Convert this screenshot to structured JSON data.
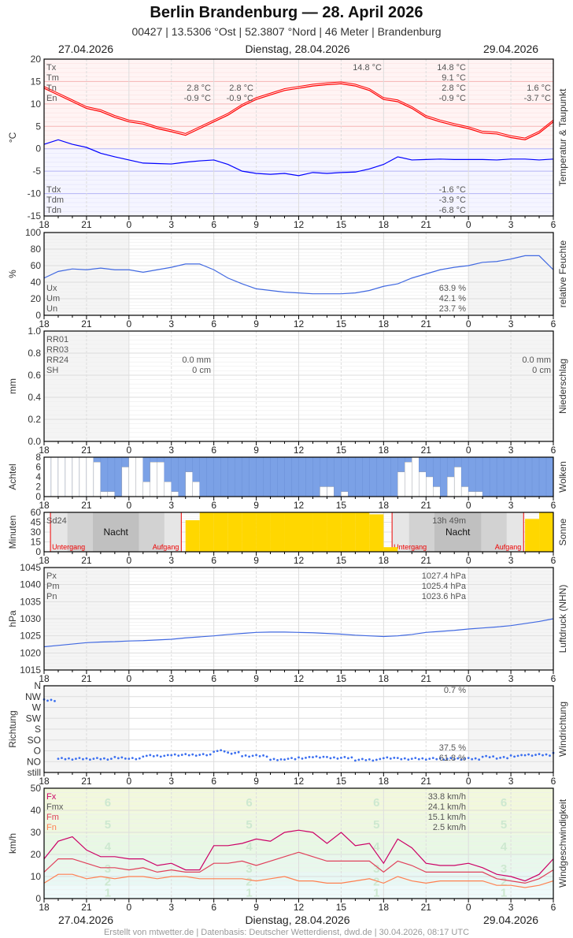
{
  "header": {
    "title": "Berlin Brandenburg  —  28. April 2026",
    "subtitle": "00427  |  13.5306 °Ost  |  52.3807 °Nord  |  46 Meter  |  Brandenburg",
    "date_left": "27.04.2026",
    "date_center": "Dienstag, 28.04.2026",
    "date_right": "29.04.2026"
  },
  "footer": "Erstellt von mtwetter.de | Datenbasis: Deutscher Wetterdienst, dwd.de | 30.04.2026, 08:17 UTC",
  "x_tick_labels": [
    "18",
    "21",
    "0",
    "3",
    "6",
    "9",
    "12",
    "15",
    "18",
    "21",
    "0",
    "3",
    "6"
  ],
  "colors": {
    "temp": "#ff0000",
    "dew": "#0000ff",
    "hum": "#4169e1",
    "cloud": "#7ba1e6",
    "sun": "#ffd700",
    "press": "#4169e1",
    "dir": "#3b6ff0",
    "fx": "#cc0066",
    "fm": "#e0405a",
    "fn": "#ff7f50"
  },
  "chart_data": [
    {
      "id": "temperature",
      "type": "line",
      "ylabel": "°C",
      "side_label": "Temperatur & Taupunkt",
      "ylim": [
        -15,
        20
      ],
      "yticks": [
        "20",
        "15",
        "10",
        "5",
        "0",
        "-5",
        "-10",
        "-15"
      ],
      "series": [
        {
          "name": "T",
          "values": [
            13.5,
            12,
            10.5,
            9,
            8.3,
            7,
            6,
            5.5,
            4.5,
            3.8,
            3,
            4.5,
            6,
            7.5,
            9.5,
            11,
            12,
            13,
            13.5,
            14,
            14.3,
            14.5,
            14,
            13,
            11,
            10.5,
            9,
            7,
            6,
            5.2,
            4.5,
            3.5,
            3.3,
            2.5,
            2,
            3.5,
            6
          ]
        },
        {
          "name": "Td",
          "values": [
            1,
            2,
            1,
            0.3,
            -1,
            -1.8,
            -2.5,
            -3.2,
            -3.3,
            -3.4,
            -3,
            -2.7,
            -2.5,
            -3.5,
            -5,
            -5.5,
            -5.7,
            -5.5,
            -6,
            -5.3,
            -5.5,
            -5.3,
            -5.2,
            -4.5,
            -3.5,
            -1.8,
            -2.5,
            -2.4,
            -2.3,
            -2.4,
            -2.4,
            -2.4,
            -2.5,
            -2.3,
            -2.3,
            -2.5,
            -2.3
          ]
        }
      ],
      "legend_top": [
        "Tx",
        "Tm",
        "Tn",
        "En"
      ],
      "legend_bottom": [
        "Tdx",
        "Tdm",
        "Tdn"
      ],
      "stats": {
        "day0": [
          "2.8 °C",
          "-0.9 °C"
        ],
        "night1": [
          "2.8 °C",
          "-0.9 °C"
        ],
        "max_label": "14.8 °C",
        "day1": [
          "14.8 °C",
          "9.1 °C",
          "2.8 °C",
          "-0.9 °C"
        ],
        "day1_dew": [
          "-1.6 °C",
          "-3.9 °C",
          "-6.8 °C"
        ],
        "day2": [
          "1.6 °C",
          "-3.7 °C"
        ]
      }
    },
    {
      "id": "humidity",
      "type": "line",
      "ylabel": "%",
      "side_label": "relative Feuchte",
      "ylim": [
        0,
        100
      ],
      "yticks": [
        "100",
        "80",
        "60",
        "40",
        "20",
        "0"
      ],
      "series": [
        {
          "name": "U",
          "values": [
            45,
            53,
            56,
            55,
            57,
            55,
            55,
            52,
            55,
            58,
            62,
            62,
            55,
            45,
            38,
            32,
            30,
            28,
            27,
            26,
            26,
            26,
            27,
            30,
            35,
            38,
            45,
            50,
            55,
            58,
            60,
            64,
            65,
            68,
            72,
            72,
            55
          ]
        }
      ],
      "legend": [
        "Ux",
        "Um",
        "Un"
      ],
      "stats": [
        "63.9 %",
        "42.1 %",
        "23.7 %"
      ]
    },
    {
      "id": "precipitation",
      "type": "bar",
      "ylabel": "mm",
      "side_label": "Niederschlag",
      "ylim": [
        0,
        1
      ],
      "yticks": [
        "1.0",
        "0.8",
        "0.6",
        "0.4",
        "0.2",
        "0.0"
      ],
      "values": [],
      "legend": [
        "RR01",
        "RR03",
        "RR24",
        "SH"
      ],
      "stats_day1": [
        "0.0 mm",
        "0 cm"
      ],
      "stats_day2": [
        "0.0 mm",
        "0 cm"
      ]
    },
    {
      "id": "clouds",
      "type": "bar",
      "ylabel": "Achtel",
      "side_label": "Wolken",
      "ylim": [
        0,
        8
      ],
      "yticks": [
        "8",
        "6",
        "4",
        "2",
        "0"
      ],
      "values": [
        8,
        8,
        8,
        8,
        8,
        8,
        8,
        7,
        1,
        1,
        0,
        6,
        8,
        8,
        3,
        7,
        7,
        3,
        1,
        0,
        5,
        3,
        0,
        0,
        0,
        0,
        0,
        0,
        0,
        0,
        0,
        0,
        0,
        0,
        0,
        0,
        0,
        0,
        0,
        2,
        2,
        0,
        1,
        0,
        0,
        0,
        0,
        0,
        0,
        0,
        5,
        7,
        8,
        5,
        4,
        2,
        0,
        4,
        6,
        2,
        1,
        1,
        0,
        0,
        0,
        0,
        0,
        0,
        0,
        0,
        0,
        0
      ]
    },
    {
      "id": "sunshine",
      "type": "bar",
      "ylabel": "Minuten",
      "side_label": "Sonne",
      "ylim": [
        0,
        60
      ],
      "yticks": [
        "60",
        "45",
        "30",
        "15",
        "0"
      ],
      "values": [
        0,
        0,
        0,
        0,
        0,
        0,
        0,
        0,
        0,
        0,
        48,
        60,
        60,
        60,
        60,
        60,
        60,
        60,
        60,
        60,
        60,
        60,
        60,
        57,
        7,
        0,
        0,
        0,
        0,
        0,
        0,
        0,
        0,
        0,
        50,
        60
      ],
      "labels": {
        "sd24": "Sd24",
        "duration": "13h 49m",
        "night": "Nacht",
        "sunset": "Untergang",
        "sunrise": "Aufgang"
      }
    },
    {
      "id": "pressure",
      "type": "line",
      "ylabel": "hPa",
      "side_label": "Luftdruck (NHN)",
      "ylim": [
        1015,
        1045
      ],
      "yticks": [
        "1045",
        "1040",
        "1035",
        "1030",
        "1025",
        "1020",
        "1015"
      ],
      "series": [
        {
          "name": "P",
          "values": [
            1021.8,
            1022.2,
            1022.6,
            1023,
            1023.2,
            1023.3,
            1023.5,
            1023.6,
            1023.8,
            1024,
            1024.4,
            1024.7,
            1025,
            1025.4,
            1025.7,
            1026,
            1026.1,
            1026.1,
            1026,
            1025.9,
            1025.7,
            1025.5,
            1025.2,
            1025,
            1024.8,
            1025,
            1025.4,
            1026,
            1026.3,
            1026.6,
            1027,
            1027.3,
            1027.6,
            1028,
            1028.6,
            1029.2,
            1030
          ]
        }
      ],
      "legend": [
        "Px",
        "Pm",
        "Pn"
      ],
      "stats": [
        "1027.4 hPa",
        "1025.4 hPa",
        "1023.6 hPa"
      ]
    },
    {
      "id": "wind_direction",
      "type": "scatter",
      "ylabel": "Richtung",
      "side_label": "Windrichtung",
      "yticks": [
        "N",
        "NW",
        "W",
        "SW",
        "S",
        "SO",
        "O",
        "NO",
        "still"
      ],
      "values": [
        1,
        7,
        7,
        7,
        7,
        6.9,
        7,
        6.7,
        6.7,
        6.6,
        6.6,
        6.6,
        6.2,
        6.4,
        6.7,
        6.7,
        7.1,
        7,
        6.9,
        6.8,
        6.9,
        6.9,
        7.1,
        7.1,
        6.9,
        7,
        7,
        7,
        7,
        7,
        7,
        6.8,
        6.9,
        6.7,
        6.6,
        6.6,
        6.4
      ],
      "stats": [
        "0.7 %",
        "37.5 %",
        "61.8 %"
      ]
    },
    {
      "id": "wind_speed",
      "type": "line",
      "ylabel": "km/h",
      "side_label": "Windgeschwindigkeit",
      "ylim": [
        0,
        50
      ],
      "yticks": [
        "50",
        "40",
        "30",
        "20",
        "10",
        "0"
      ],
      "beaufort": [
        "1",
        "2",
        "3",
        "4",
        "5",
        "6"
      ],
      "series": [
        {
          "name": "Fx",
          "values": [
            18,
            26,
            28,
            22,
            19,
            19,
            18,
            18,
            15,
            16,
            13,
            13,
            24,
            24,
            25,
            27,
            26,
            30,
            31,
            30,
            25,
            30,
            24,
            25,
            16,
            27,
            23,
            16,
            15,
            15,
            16,
            14,
            11,
            10,
            8,
            11,
            18
          ]
        },
        {
          "name": "Fm",
          "values": [
            12,
            18,
            18,
            16,
            14,
            14,
            13,
            14,
            12,
            13,
            12,
            12,
            16,
            16,
            17,
            15,
            17,
            19,
            21,
            19,
            17,
            17,
            17,
            17,
            12,
            17,
            15,
            12,
            12,
            12,
            12,
            12,
            9,
            8,
            7,
            9,
            13
          ]
        },
        {
          "name": "Fn",
          "values": [
            7,
            11,
            11,
            9,
            10,
            9,
            10,
            10,
            9,
            10,
            10,
            9,
            9,
            9,
            9,
            8,
            9,
            10,
            8,
            8,
            7,
            7,
            8,
            9,
            7,
            10,
            8,
            7,
            8,
            8,
            8,
            8,
            6,
            6,
            5,
            6,
            8
          ]
        }
      ],
      "legend": [
        "Fx",
        "Fmx",
        "Fm",
        "Fn"
      ],
      "stats": [
        "33.8 km/h",
        "24.1 km/h",
        "15.1 km/h",
        "2.5 km/h"
      ]
    }
  ]
}
